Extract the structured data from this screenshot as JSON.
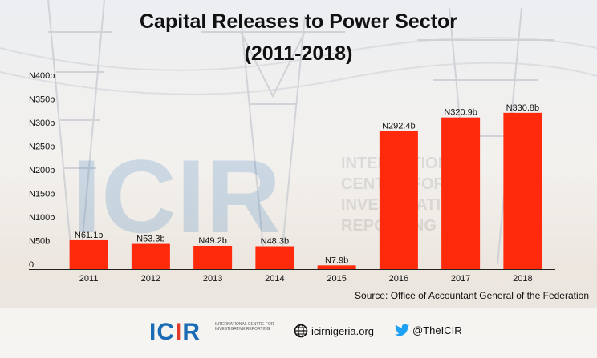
{
  "title_line1": "Capital Releases to Power Sector",
  "title_line2": "(2011-2018)",
  "source": "Source: Office of Accountant General of the Federation",
  "footer": {
    "logo_text": "ICIR",
    "logo_sub": "International Centre for Investigative Reporting",
    "website": "icirnigeria.org",
    "twitter": "@TheICIR"
  },
  "colors": {
    "bar": "#ff2a0c",
    "axis": "#222222",
    "brand_blue": "#1b6cb5",
    "brand_red": "#e23a2a"
  },
  "chart_data": {
    "type": "bar",
    "title": "Capital Releases to Power Sector (2011-2018)",
    "xlabel": "",
    "ylabel": "",
    "categories": [
      "2011",
      "2012",
      "2013",
      "2014",
      "2015",
      "2016",
      "2017",
      "2018"
    ],
    "values": [
      61.1,
      53.3,
      49.2,
      48.3,
      7.9,
      292.4,
      320.9,
      330.8
    ],
    "data_labels": [
      "N61.1b",
      "N53.3b",
      "N49.2b",
      "N48.3b",
      "N7.9b",
      "N292.4b",
      "N320.9b",
      "N330.8b"
    ],
    "ylim": [
      0,
      400
    ],
    "yticks": [
      0,
      50,
      100,
      150,
      200,
      250,
      300,
      350,
      400
    ],
    "ytick_labels": [
      "0",
      "N50b",
      "N100b",
      "N150b",
      "N200b",
      "N250b",
      "N300b",
      "N350b",
      "N400b"
    ],
    "grid": false
  }
}
